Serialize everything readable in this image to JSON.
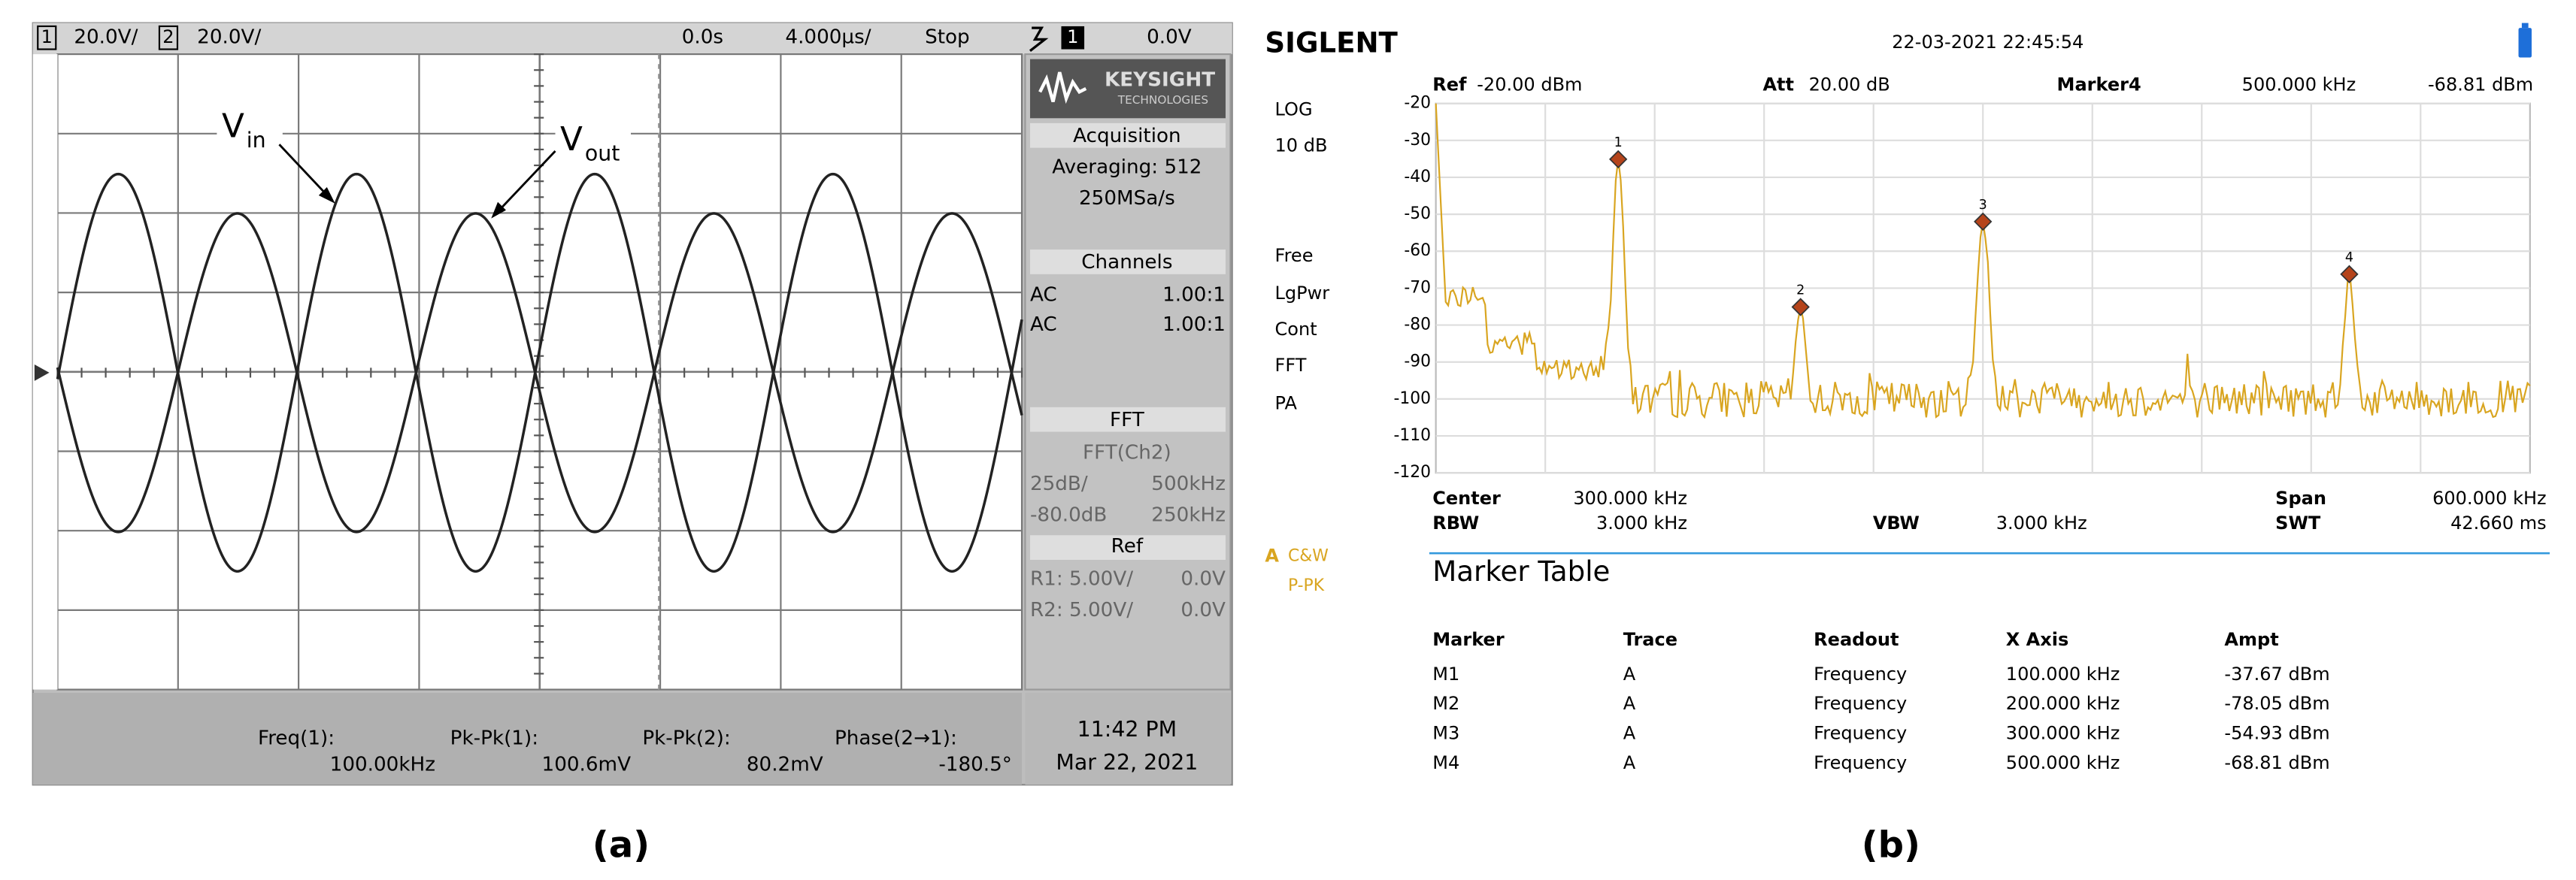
{
  "scope": {
    "top_bar": {
      "ch1": "1",
      "ch1_scale": "20.0V/",
      "ch2": "2",
      "ch2_scale": "20.0V/",
      "time_ref": "0.0s",
      "time_scale": "4.000µs/",
      "run_state": "Stop",
      "trigger_channel": "1",
      "trigger_level": "0.0V"
    },
    "annotations": [
      {
        "text": "V",
        "sub": "in"
      },
      {
        "text": "V",
        "sub": "out"
      }
    ],
    "side_panel": {
      "logo": "KEYSIGHT",
      "logo_sub": "TECHNOLOGIES",
      "acquisition": {
        "title": "Acquisition",
        "lines": [
          "Averaging: 512",
          "250MSa/s"
        ]
      },
      "channels": {
        "title": "Channels",
        "rows": [
          [
            "AC",
            "1.00:1"
          ],
          [
            "AC",
            "1.00:1"
          ]
        ]
      },
      "fft": {
        "title": "FFT",
        "source": "FFT(Ch2)",
        "rows": [
          [
            "25dB/",
            "500kHz"
          ],
          [
            "-80.0dB",
            "250kHz"
          ]
        ]
      },
      "ref": {
        "title": "Ref",
        "rows": [
          [
            "R1: 5.00V/",
            "0.0V"
          ],
          [
            "R2: 5.00V/",
            "0.0V"
          ]
        ]
      }
    },
    "measurements": [
      {
        "label": "Freq(1):",
        "value": "100.00kHz"
      },
      {
        "label": "Pk-Pk(1):",
        "value": "100.6mV"
      },
      {
        "label": "Pk-Pk(2):",
        "value": "80.2mV"
      },
      {
        "label": "Phase(2→1):",
        "value": "-180.5°"
      }
    ],
    "time": "11:42 PM",
    "date": "Mar 22, 2021",
    "caption": "(a)"
  },
  "analyzer": {
    "brand": "SIGLENT",
    "datetime": "22-03-2021  22:45:54",
    "header": {
      "ref_label": "Ref",
      "ref_value": "-20.00 dBm",
      "att_label": "Att",
      "att_value": "20.00 dB",
      "marker_label": "Marker4",
      "marker_freq": "500.000 kHz",
      "marker_ampt": "-68.81 dBm"
    },
    "side_labels": [
      "LOG",
      "10 dB",
      "Free",
      "LgPwr",
      "Cont",
      "FFT",
      "PA"
    ],
    "trace_labels": {
      "trace": "A",
      "mode": "C&W",
      "detector": "P-PK"
    },
    "y_axis_labels": [
      -20,
      -30,
      -40,
      -50,
      -60,
      -70,
      -80,
      -90,
      -100,
      -110,
      -120
    ],
    "peak_labels": [
      "1",
      "2",
      "3",
      "4"
    ],
    "footer": {
      "center_label": "Center",
      "center_value": "300.000 kHz",
      "span_label": "Span",
      "span_value": "600.000 kHz",
      "rbw_label": "RBW",
      "rbw_value": "3.000 kHz",
      "vbw_label": "VBW",
      "vbw_value": "3.000 kHz",
      "swt_label": "SWT",
      "swt_value": "42.660 ms"
    },
    "marker_table": {
      "title": "Marker Table",
      "headers": [
        "Marker",
        "Trace",
        "Readout",
        "X Axis",
        "Ampt"
      ],
      "rows": [
        [
          "M1",
          "A",
          "Frequency",
          "100.000 kHz",
          "-37.67 dBm"
        ],
        [
          "M2",
          "A",
          "Frequency",
          "200.000 kHz",
          "-78.05 dBm"
        ],
        [
          "M3",
          "A",
          "Frequency",
          "300.000 kHz",
          "-54.93 dBm"
        ],
        [
          "M4",
          "A",
          "Frequency",
          "500.000 kHz",
          "-68.81 dBm"
        ]
      ]
    },
    "caption": "(b)"
  }
}
